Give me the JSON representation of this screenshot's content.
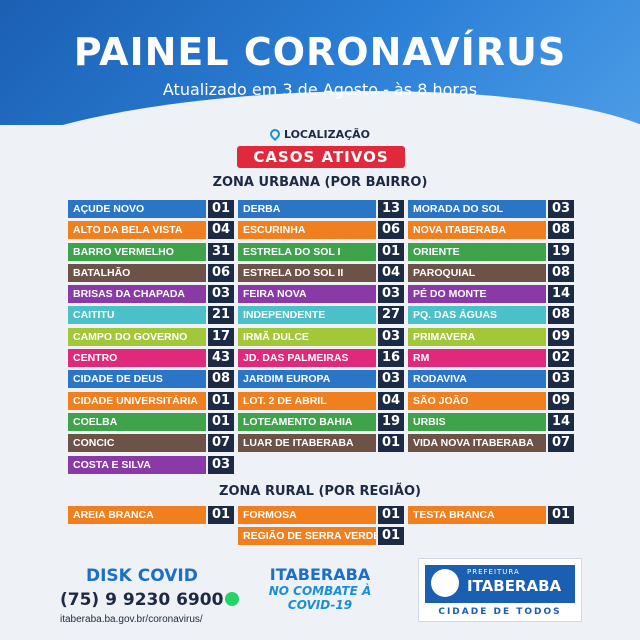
{
  "header": {
    "title": "PAINEL CORONAVÍRUS",
    "subtitle": "Atualizado em 3 de Agosto - às 8 horas"
  },
  "location_label": "LOCALIZAÇÃO",
  "casos_label": "CASOS ATIVOS",
  "urban_title": "ZONA URBANA (POR BAIRRO)",
  "rural_title": "ZONA RURAL (POR REGIÃO)",
  "urban_columns": [
    [
      {
        "name": "AÇUDE NOVO",
        "value": "01",
        "color": "#2a75c6"
      },
      {
        "name": "ALTO DA BELA VISTA",
        "value": "04",
        "color": "#f07f1f"
      },
      {
        "name": "BARRO VERMELHO",
        "value": "31",
        "color": "#3ea34a"
      },
      {
        "name": "BATALHÃO",
        "value": "06",
        "color": "#6d5248"
      },
      {
        "name": "BRISAS DA CHAPADA",
        "value": "03",
        "color": "#8a3aa6"
      },
      {
        "name": "CAITITU",
        "value": "21",
        "color": "#4cc0c8"
      },
      {
        "name": "CAMPO DO GOVERNO",
        "value": "17",
        "color": "#a2c83a"
      },
      {
        "name": "CENTRO",
        "value": "43",
        "color": "#e0297a"
      },
      {
        "name": "CIDADE DE DEUS",
        "value": "08",
        "color": "#2a75c6"
      },
      {
        "name": "CIDADE UNIVERSITÁRIA",
        "value": "01",
        "color": "#f07f1f"
      },
      {
        "name": "COELBA",
        "value": "01",
        "color": "#3ea34a"
      },
      {
        "name": "CONCIC",
        "value": "07",
        "color": "#6d5248"
      },
      {
        "name": "COSTA E SILVA",
        "value": "03",
        "color": "#8a3aa6"
      }
    ],
    [
      {
        "name": "DERBA",
        "value": "13",
        "color": "#2a75c6"
      },
      {
        "name": "ESCURINHA",
        "value": "06",
        "color": "#f07f1f"
      },
      {
        "name": "ESTRELA DO SOL I",
        "value": "01",
        "color": "#3ea34a"
      },
      {
        "name": "ESTRELA DO SOL II",
        "value": "04",
        "color": "#6d5248"
      },
      {
        "name": "FEIRA NOVA",
        "value": "03",
        "color": "#8a3aa6"
      },
      {
        "name": "INDEPENDENTE",
        "value": "27",
        "color": "#4cc0c8"
      },
      {
        "name": "IRMÃ DULCE",
        "value": "03",
        "color": "#a2c83a"
      },
      {
        "name": "JD. DAS PALMEIRAS",
        "value": "16",
        "color": "#e0297a"
      },
      {
        "name": "JARDIM EUROPA",
        "value": "03",
        "color": "#2a75c6"
      },
      {
        "name": "LOT. 2 DE ABRIL",
        "value": "04",
        "color": "#f07f1f"
      },
      {
        "name": "LOTEAMENTO BAHIA",
        "value": "19",
        "color": "#3ea34a"
      },
      {
        "name": "LUAR DE ITABERABA",
        "value": "01",
        "color": "#6d5248"
      }
    ],
    [
      {
        "name": "MORADA DO SOL",
        "value": "03",
        "color": "#2a75c6"
      },
      {
        "name": "NOVA ITABERABA",
        "value": "08",
        "color": "#f07f1f"
      },
      {
        "name": "ORIENTE",
        "value": "19",
        "color": "#3ea34a"
      },
      {
        "name": "PAROQUIAL",
        "value": "08",
        "color": "#6d5248"
      },
      {
        "name": "PÉ DO MONTE",
        "value": "14",
        "color": "#8a3aa6"
      },
      {
        "name": "PQ. DAS ÁGUAS",
        "value": "08",
        "color": "#4cc0c8"
      },
      {
        "name": "PRIMAVERA",
        "value": "09",
        "color": "#a2c83a"
      },
      {
        "name": "RM",
        "value": "02",
        "color": "#e0297a"
      },
      {
        "name": "RODAVIVA",
        "value": "03",
        "color": "#2a75c6"
      },
      {
        "name": "SÃO JOÃO",
        "value": "09",
        "color": "#f07f1f"
      },
      {
        "name": "URBIS",
        "value": "14",
        "color": "#3ea34a"
      },
      {
        "name": "VIDA NOVA ITABERABA",
        "value": "07",
        "color": "#6d5248"
      }
    ]
  ],
  "rural_columns": [
    [
      {
        "name": "AREIA BRANCA",
        "value": "01",
        "color": "#f07f1f"
      }
    ],
    [
      {
        "name": "FORMOSA",
        "value": "01",
        "color": "#f07f1f"
      },
      {
        "name": "REGIÃO DE SERRA VERDE I",
        "value": "01",
        "color": "#f07f1f"
      }
    ],
    [
      {
        "name": "TESTA BRANCA",
        "value": "01",
        "color": "#f07f1f"
      }
    ]
  ],
  "footer": {
    "disk_label": "DISK COVID",
    "phone": "(75) 9 9230 6900",
    "url": "itaberaba.ba.gov.br/coronavirus/",
    "center_city": "ITABERABA",
    "center_slogan": "NO COMBATE À COVID-19",
    "prefeitura": "PREFEITURA",
    "right_city": "ITABERABA",
    "right_tagline": "CIDADE DE TODOS"
  }
}
